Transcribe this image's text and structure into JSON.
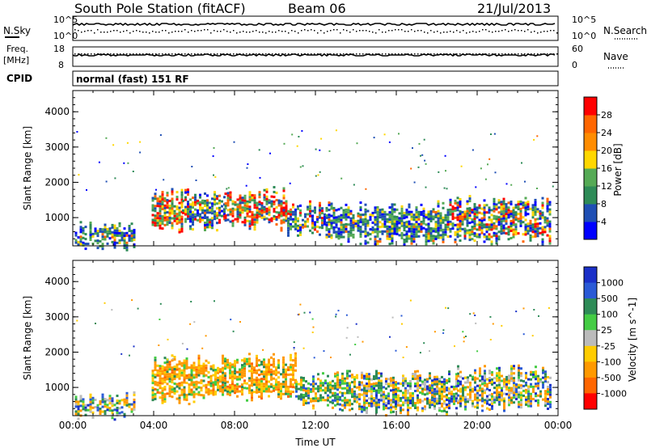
{
  "header": {
    "station": "South Pole Station (fitACF)",
    "beam": "Beam 06",
    "date": "21/Jul/2013"
  },
  "strip_labels": {
    "nsky": "N.Sky",
    "nsearch": "N.Search",
    "freq_line1": "Freq.",
    "freq_line2": "[MHz]",
    "nave": "Nave",
    "cpid": "CPID",
    "cpid_value": "normal (fast) 151 RF"
  },
  "strip_ticks": {
    "noise_left": [
      "10^5",
      "10^0"
    ],
    "noise_right": [
      "10^5",
      "10^0"
    ],
    "freq_left": [
      "18",
      "8"
    ],
    "nave_right": [
      "60",
      "0"
    ]
  },
  "colors": {
    "power_scale": [
      "#0000ff",
      "#1f4fb4",
      "#2e8b57",
      "#55aa55",
      "#ffd700",
      "#ff8c00",
      "#ff6600",
      "#ff0000"
    ],
    "velocity_scale": [
      "#1a30c8",
      "#2a5ad6",
      "#2e8b57",
      "#44cc44",
      "#bbbbbb",
      "#ffcc00",
      "#ff9900",
      "#ff6600",
      "#ff0000"
    ]
  },
  "chart_data": [
    {
      "type": "heatmap",
      "name": "power",
      "xlabel": "",
      "ylabel": "Slant Range [km]",
      "x_ticks": [
        "00:00",
        "04:00",
        "08:00",
        "12:00",
        "16:00",
        "20:00",
        "00:00"
      ],
      "y_ticks": [
        1000,
        2000,
        3000,
        4000
      ],
      "ylim": [
        200,
        4600
      ],
      "colorbar": {
        "label": "Power [dB]",
        "ticks": [
          4,
          8,
          12,
          16,
          20,
          24,
          28
        ]
      },
      "echo_regions": [
        {
          "t0": 3.9,
          "t1": 5.4,
          "r0": 700,
          "r1": 1650,
          "level": "high"
        },
        {
          "t0": 5.4,
          "t1": 7.5,
          "r0": 800,
          "r1": 1650,
          "level": "mid"
        },
        {
          "t0": 7.5,
          "t1": 10.6,
          "r0": 800,
          "r1": 1700,
          "level": "high"
        },
        {
          "t0": 10.6,
          "t1": 12.5,
          "r0": 600,
          "r1": 1300,
          "level": "mid"
        },
        {
          "t0": 12.5,
          "t1": 18.5,
          "r0": 400,
          "r1": 1300,
          "level": "low"
        },
        {
          "t0": 18.5,
          "t1": 23.6,
          "r0": 400,
          "r1": 1450,
          "level": "mid"
        },
        {
          "t0": 0.1,
          "t1": 3.0,
          "r0": 250,
          "r1": 700,
          "level": "low"
        }
      ]
    },
    {
      "type": "heatmap",
      "name": "velocity",
      "xlabel": "Time UT",
      "ylabel": "Slant Range [km]",
      "x_ticks": [
        "00:00",
        "04:00",
        "08:00",
        "12:00",
        "16:00",
        "20:00",
        "00:00"
      ],
      "y_ticks": [
        1000,
        2000,
        3000,
        4000
      ],
      "ylim": [
        200,
        4600
      ],
      "colorbar": {
        "label": "Velocity [m s^-1]",
        "ticks": [
          "1000",
          "500",
          "100",
          "25",
          "-25",
          "-100",
          "-500",
          "-1000"
        ]
      },
      "echo_regions": [
        {
          "t0": 3.9,
          "t1": 7.0,
          "r0": 700,
          "r1": 1750,
          "level": "orange"
        },
        {
          "t0": 7.0,
          "t1": 11.0,
          "r0": 800,
          "r1": 1800,
          "level": "orange"
        },
        {
          "t0": 11.0,
          "t1": 14.0,
          "r0": 500,
          "r1": 1300,
          "level": "green"
        },
        {
          "t0": 14.0,
          "t1": 19.0,
          "r0": 400,
          "r1": 1300,
          "level": "mixed"
        },
        {
          "t0": 19.0,
          "t1": 23.6,
          "r0": 500,
          "r1": 1450,
          "level": "mixed"
        },
        {
          "t0": 0.1,
          "t1": 3.0,
          "r0": 250,
          "r1": 700,
          "level": "mixed"
        }
      ]
    }
  ]
}
